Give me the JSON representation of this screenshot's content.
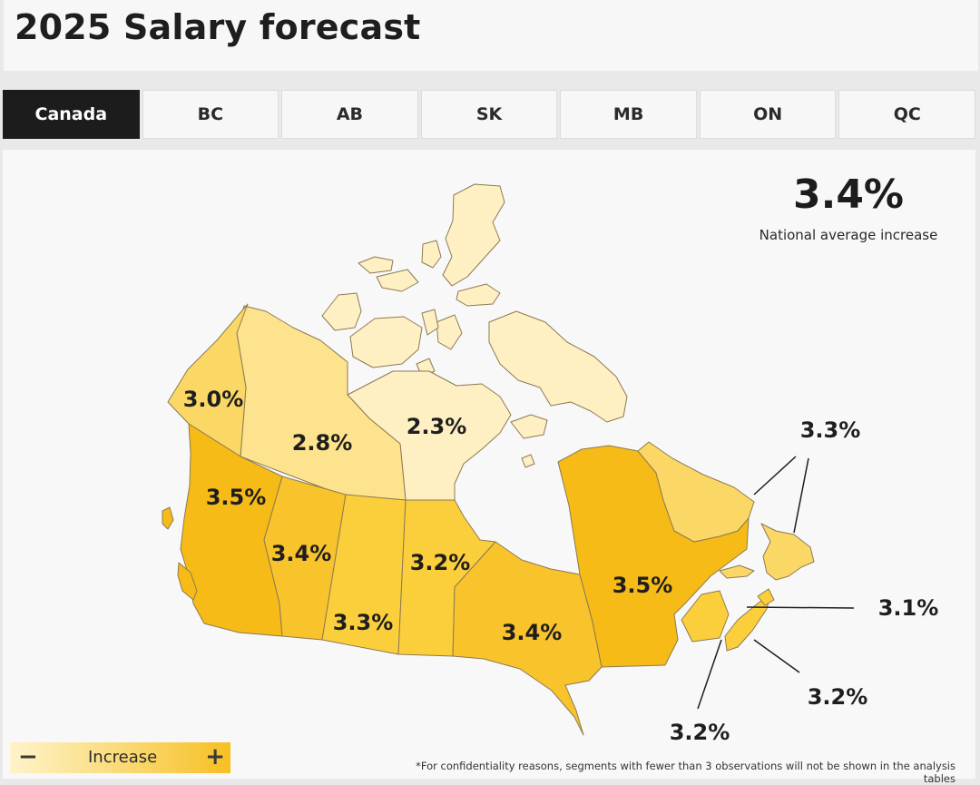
{
  "title": "2025 Salary forecast",
  "tabs": [
    {
      "label": "Canada",
      "active": true
    },
    {
      "label": "BC",
      "active": false
    },
    {
      "label": "AB",
      "active": false
    },
    {
      "label": "SK",
      "active": false
    },
    {
      "label": "MB",
      "active": false
    },
    {
      "label": "ON",
      "active": false
    },
    {
      "label": "QC",
      "active": false
    }
  ],
  "national": {
    "value": "3.4%",
    "label": "National average increase"
  },
  "provinces": {
    "yt": "3.0%",
    "nt": "2.8%",
    "nu": "2.3%",
    "bc": "3.5%",
    "ab": "3.4%",
    "sk": "3.3%",
    "mb": "3.2%",
    "on": "3.4%",
    "qc": "3.5%",
    "nl": "3.3%",
    "pe": "3.1%",
    "ns": "3.2%",
    "nb": "3.2%"
  },
  "legend": {
    "label": "Increase",
    "minus": "−",
    "plus": "+"
  },
  "colors": {
    "lowest": "#fff0c4",
    "low": "#fde38d",
    "mid": "#fbcf3c",
    "high": "#f6bb17",
    "border": "#8c7a52"
  },
  "footnote": "*For confidentiality reasons, segments with fewer than 3 observations will not be shown in the analysis tables"
}
